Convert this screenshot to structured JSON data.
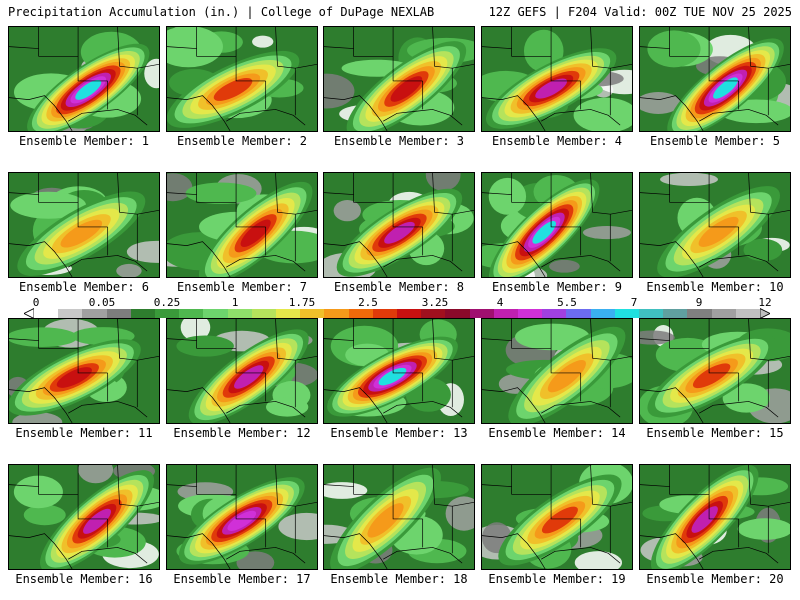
{
  "header": {
    "title": "Precipitation Accumulation (in.) | College of DuPage NEXLAB",
    "run_info": "12Z GEFS | F204 Valid: 00Z TUE NOV 25 2025"
  },
  "scale": {
    "labels": [
      "0",
      "0.05",
      "0.25",
      "1",
      "1.75",
      "2.5",
      "3.25",
      "4",
      "5.5",
      "7",
      "9",
      "12"
    ],
    "colors": [
      "#ffffff",
      "#c8c8c8",
      "#a0a0a0",
      "#7d7d7d",
      "#2e7d2e",
      "#3a9a3a",
      "#4fb84f",
      "#6dd46d",
      "#8fe06a",
      "#b5e35c",
      "#e4e84a",
      "#f0c02a",
      "#f59a1a",
      "#f06a0a",
      "#e03a0a",
      "#c81010",
      "#a0101e",
      "#8a0a2a",
      "#a01070",
      "#c020b0",
      "#d030d8",
      "#a040e0",
      "#6c6cf0",
      "#3ab0f0",
      "#20e0e0",
      "#40c0c0",
      "#60a0a0",
      "#808080",
      "#a0a0a0",
      "#c0c0c0"
    ]
  },
  "panels": [
    {
      "caption": "Ensemble Member: 1"
    },
    {
      "caption": "Ensemble Member: 2"
    },
    {
      "caption": "Ensemble Member: 3"
    },
    {
      "caption": "Ensemble Member: 4"
    },
    {
      "caption": "Ensemble Member: 5"
    },
    {
      "caption": "Ensemble Member: 6"
    },
    {
      "caption": "Ensemble Member: 7"
    },
    {
      "caption": "Ensemble Member: 8"
    },
    {
      "caption": "Ensemble Member: 9"
    },
    {
      "caption": "Ensemble Member: 10"
    },
    {
      "caption": "Ensemble Member: 11"
    },
    {
      "caption": "Ensemble Member: 12"
    },
    {
      "caption": "Ensemble Member: 13"
    },
    {
      "caption": "Ensemble Member: 14"
    },
    {
      "caption": "Ensemble Member: 15"
    },
    {
      "caption": "Ensemble Member: 16"
    },
    {
      "caption": "Ensemble Member: 17"
    },
    {
      "caption": "Ensemble Member: 18"
    },
    {
      "caption": "Ensemble Member: 19"
    },
    {
      "caption": "Ensemble Member: 20"
    }
  ]
}
